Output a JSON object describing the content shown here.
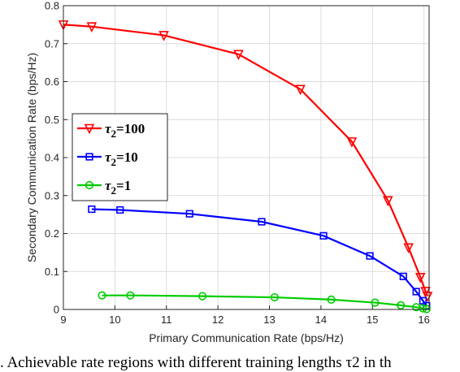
{
  "chart_data": {
    "type": "line",
    "xlabel": "Primary Communication Rate (bps/Hz)",
    "ylabel": "Secondary Communication Rate (bps/Hz)",
    "xlim": [
      9,
      16.1
    ],
    "ylim": [
      0,
      0.8
    ],
    "xticks": [
      9,
      10,
      11,
      12,
      13,
      14,
      15,
      16
    ],
    "yticks": [
      0,
      0.1,
      0.2,
      0.3,
      0.4,
      0.5,
      0.6,
      0.7,
      0.8
    ],
    "grid": true,
    "legend_position": "center-left",
    "series": [
      {
        "name": "τ2=100",
        "symbol": "τ",
        "subscript": "2",
        "value_label": "=100",
        "color": "#ff0000",
        "marker": "triangle-down",
        "x": [
          9.0,
          9.55,
          10.95,
          12.4,
          13.6,
          14.6,
          15.3,
          15.7,
          15.93,
          16.03,
          16.07
        ],
        "y": [
          0.75,
          0.745,
          0.722,
          0.672,
          0.58,
          0.442,
          0.287,
          0.163,
          0.085,
          0.048,
          0.035
        ]
      },
      {
        "name": "τ2=10",
        "symbol": "τ",
        "subscript": "2",
        "value_label": "=10",
        "color": "#0000ff",
        "marker": "square",
        "x": [
          9.55,
          10.1,
          11.45,
          12.85,
          14.05,
          14.95,
          15.6,
          15.85,
          15.98,
          16.05
        ],
        "y": [
          0.264,
          0.262,
          0.252,
          0.231,
          0.194,
          0.141,
          0.087,
          0.047,
          0.023,
          0.01
        ]
      },
      {
        "name": "τ2=1",
        "symbol": "τ",
        "subscript": "2",
        "value_label": "=1",
        "color": "#00cc00",
        "marker": "circle",
        "x": [
          9.75,
          10.3,
          11.7,
          13.1,
          14.2,
          15.05,
          15.55,
          15.85,
          15.98,
          16.05
        ],
        "y": [
          0.037,
          0.037,
          0.035,
          0.032,
          0.026,
          0.018,
          0.011,
          0.006,
          0.003,
          0.001
        ]
      }
    ]
  },
  "caption": ". Achievable rate regions with different training lengths τ2 in th"
}
